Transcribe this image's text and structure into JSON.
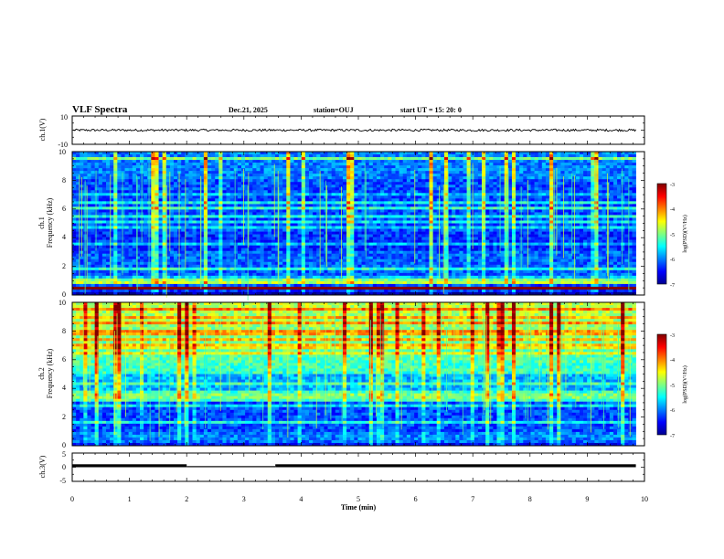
{
  "header": {
    "title": "VLF Spectra",
    "date": "Dec.21, 2025",
    "station": "station=OUJ",
    "start": "start UT =  15: 20: 0"
  },
  "chart_data": [
    {
      "type": "line",
      "name": "ch1-waveform",
      "ylabel": "ch.1(V)",
      "ylim": [
        -10,
        10
      ],
      "yticks": [
        10,
        -10
      ],
      "baseline": 0,
      "noise_amplitude": 0.8,
      "xlim": [
        0,
        10
      ],
      "data_end": 9.85
    },
    {
      "type": "heatmap",
      "name": "ch1-spectrogram",
      "ylabel_channel": "ch.1",
      "ylabel": "Frequency (kHz)",
      "ylim": [
        0,
        10
      ],
      "yticks": [
        "0",
        "2",
        "4",
        "6",
        "8",
        "10"
      ],
      "xlim": [
        0,
        10
      ],
      "data_end": 9.85,
      "colorbar": {
        "label": "log(PSD)(V²/Hz)",
        "range": [
          -7,
          -3
        ],
        "ticks": [
          "-3",
          "-4",
          "-5",
          "-6",
          "-7"
        ]
      }
    },
    {
      "type": "heatmap",
      "name": "ch2-spectrogram",
      "ylabel_channel": "ch.2",
      "ylabel": "Frequency (kHz)",
      "ylim": [
        0,
        10
      ],
      "yticks": [
        "0",
        "2",
        "4",
        "6",
        "8",
        "10"
      ],
      "xlim": [
        0,
        10
      ],
      "data_end": 9.85,
      "colorbar": {
        "label": "log(PSD)(V²/Hz)",
        "range": [
          -7,
          -3
        ],
        "ticks": [
          "-3",
          "-4",
          "-5",
          "-6",
          "-7"
        ]
      }
    },
    {
      "type": "line",
      "name": "ch3-signal",
      "ylabel": "ch.3(V)",
      "ylim": [
        -5,
        5
      ],
      "yticks": [
        "5",
        "0",
        "-5"
      ],
      "segments": [
        {
          "x": [
            0,
            2.0
          ],
          "y": 0.5
        },
        {
          "x": [
            2.0,
            3.55
          ],
          "y": 0.2
        },
        {
          "x": [
            3.55,
            9.85
          ],
          "y": 0.5
        }
      ],
      "xlim": [
        0,
        10
      ]
    }
  ],
  "xaxis": {
    "label": "Time (min)",
    "ticks": [
      "0",
      "1",
      "2",
      "3",
      "4",
      "5",
      "6",
      "7",
      "8",
      "9",
      "10"
    ]
  }
}
